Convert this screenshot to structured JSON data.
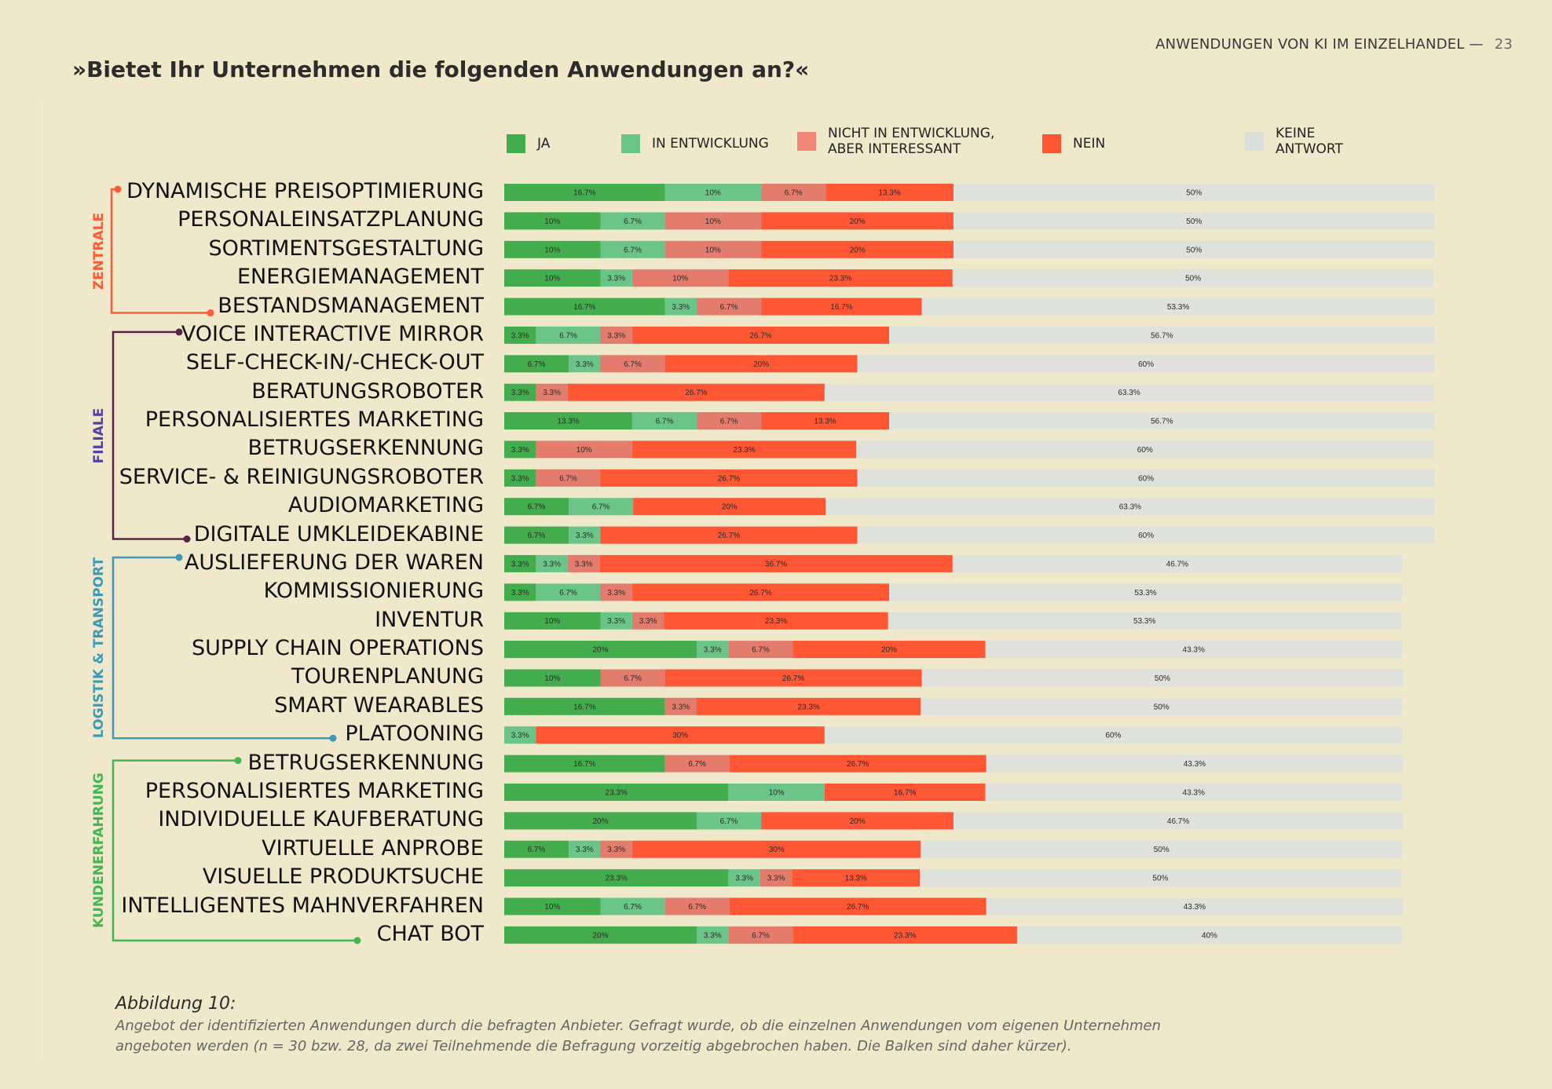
{
  "header": {
    "running_title": "ANWENDUNGEN VON KI IM EINZELHANDEL —",
    "page_number": "23"
  },
  "title": "»Bietet Ihr Unternehmen die folgenden Anwendungen an?«",
  "legend": [
    {
      "label": "JA",
      "color": "#43ad4e"
    },
    {
      "label": "IN ENTWICKLUNG",
      "color": "#6cc588"
    },
    {
      "label": "NICHT IN ENTWICKLUNG, ABER INTERESSANT",
      "line1": "NICHT IN ENTWICKLUNG,",
      "line2": "ABER INTERESSANT",
      "color": "#f08878"
    },
    {
      "label": "NEIN",
      "color": "#ff5633"
    },
    {
      "label": "KEINE ANTWORT",
      "line1": "KEINE",
      "line2": "ANTWORT",
      "color": "#dadedb"
    }
  ],
  "groups": [
    {
      "label": "ZENTRALE",
      "color": "#ff5a36",
      "label_color": "#ff5a36"
    },
    {
      "label": "FILIALE",
      "color": "#5a2345",
      "label_color": "#5340a5"
    },
    {
      "label": "LOGISTIK & TRANSPORT",
      "color": "#3c9ab8",
      "label_color": "#3c9ab8"
    },
    {
      "label": "KUNDENERFAHRUNG",
      "color": "#44b552",
      "label_color": "#44b552"
    }
  ],
  "chart_data": {
    "type": "bar",
    "orientation": "horizontal",
    "stacked": true,
    "title": "»Bietet Ihr Unternehmen die folgenden Anwendungen an?«",
    "unit": "%",
    "series_names": [
      "JA",
      "IN ENTWICKLUNG",
      "NICHT IN ENTWICKLUNG, ABER INTERESSANT",
      "NEIN",
      "KEINE ANTWORT"
    ],
    "series_colors": [
      "#43ad4e",
      "#6cc588",
      "#e47c6e",
      "#ff5633",
      "#dee1dc"
    ],
    "legend_position": "top",
    "grid": false,
    "rows": [
      {
        "group": 0,
        "label": "DYNAMISCHE PREISOPTIMIERUNG",
        "values": [
          16.7,
          10,
          6.7,
          13.3,
          50
        ]
      },
      {
        "group": 0,
        "label": "PERSONALEINSATZPLANUNG",
        "values": [
          10,
          6.7,
          10,
          20,
          50
        ]
      },
      {
        "group": 0,
        "label": "SORTIMENTSGESTALTUNG",
        "values": [
          10,
          6.7,
          10,
          20,
          50
        ]
      },
      {
        "group": 0,
        "label": "ENERGIEMANAGEMENT",
        "values": [
          10,
          3.3,
          10,
          23.3,
          50
        ]
      },
      {
        "group": 0,
        "label": "BESTANDSMANAGEMENT",
        "values": [
          16.7,
          3.3,
          6.7,
          16.7,
          53.3
        ]
      },
      {
        "group": 1,
        "label": "VOICE INTERACTIVE MIRROR",
        "values": [
          3.3,
          6.7,
          3.3,
          26.7,
          56.7
        ]
      },
      {
        "group": 1,
        "label": "SELF-CHECK-IN/-CHECK-OUT",
        "values": [
          6.7,
          3.3,
          6.7,
          20,
          60
        ]
      },
      {
        "group": 1,
        "label": "BERATUNGSROBOTER",
        "values": [
          3.3,
          0,
          3.3,
          26.7,
          63.3
        ]
      },
      {
        "group": 1,
        "label": "PERSONALISIERTES MARKETING",
        "values": [
          13.3,
          6.7,
          6.7,
          13.3,
          56.7
        ]
      },
      {
        "group": 1,
        "label": "BETRUGSERKENNUNG",
        "values": [
          3.3,
          0,
          10,
          23.3,
          60
        ]
      },
      {
        "group": 1,
        "label": "SERVICE- & REINIGUNGSROBOTER",
        "values": [
          3.3,
          0,
          6.7,
          26.7,
          60
        ]
      },
      {
        "group": 1,
        "label": "AUDIOMARKETING",
        "values": [
          6.7,
          6.7,
          0,
          20,
          63.3
        ]
      },
      {
        "group": 1,
        "label": "DIGITALE UMKLEIDEKABINE",
        "values": [
          6.7,
          3.3,
          0,
          26.7,
          60
        ]
      },
      {
        "group": 2,
        "label": "AUSLIEFERUNG DER WAREN",
        "values": [
          3.3,
          3.3,
          3.3,
          36.7,
          46.7
        ]
      },
      {
        "group": 2,
        "label": "KOMMISSIONIERUNG",
        "values": [
          3.3,
          6.7,
          3.3,
          26.7,
          53.3
        ]
      },
      {
        "group": 2,
        "label": "INVENTUR",
        "values": [
          10,
          3.3,
          3.3,
          23.3,
          53.3
        ]
      },
      {
        "group": 2,
        "label": "SUPPLY CHAIN OPERATIONS",
        "values": [
          20,
          3.3,
          6.7,
          20,
          43.3
        ]
      },
      {
        "group": 2,
        "label": "TOURENPLANUNG",
        "values": [
          10,
          0,
          6.7,
          26.7,
          50
        ]
      },
      {
        "group": 2,
        "label": "SMART WEARABLES",
        "values": [
          16.7,
          0,
          3.3,
          23.3,
          50
        ]
      },
      {
        "group": 2,
        "label": "PLATOONING",
        "values": [
          0,
          3.3,
          0,
          30,
          60
        ]
      },
      {
        "group": 3,
        "label": "BETRUGSERKENNUNG",
        "values": [
          16.7,
          0,
          6.7,
          26.7,
          43.3
        ]
      },
      {
        "group": 3,
        "label": "PERSONALISIERTES MARKETING",
        "values": [
          23.3,
          10,
          0,
          16.7,
          43.3
        ]
      },
      {
        "group": 3,
        "label": "INDIVIDUELLE KAUFBERATUNG",
        "values": [
          20,
          6.7,
          0,
          20,
          46.7
        ]
      },
      {
        "group": 3,
        "label": "VIRTUELLE ANPROBE",
        "values": [
          6.7,
          3.3,
          3.3,
          30,
          50
        ]
      },
      {
        "group": 3,
        "label": "VISUELLE PRODUKTSUCHE",
        "values": [
          23.3,
          3.3,
          3.3,
          13.3,
          50
        ]
      },
      {
        "group": 3,
        "label": "INTELLIGENTES MAHNVERFAHREN",
        "values": [
          10,
          6.7,
          6.7,
          26.7,
          43.3
        ]
      },
      {
        "group": 3,
        "label": "CHAT BOT",
        "values": [
          20,
          3.3,
          6.7,
          23.3,
          40
        ]
      }
    ]
  },
  "caption": {
    "title": "Abbildung 10:",
    "body": "Angebot der identifizierten Anwendungen durch die befragten Anbieter. Gefragt wurde, ob die einzelnen Anwendungen vom eigenen Unternehmen angeboten werden (n = 30 bzw. 28, da zwei Teilnehmende die Befragung vorzeitig abgebrochen haben. Die Balken sind daher kürzer)."
  }
}
